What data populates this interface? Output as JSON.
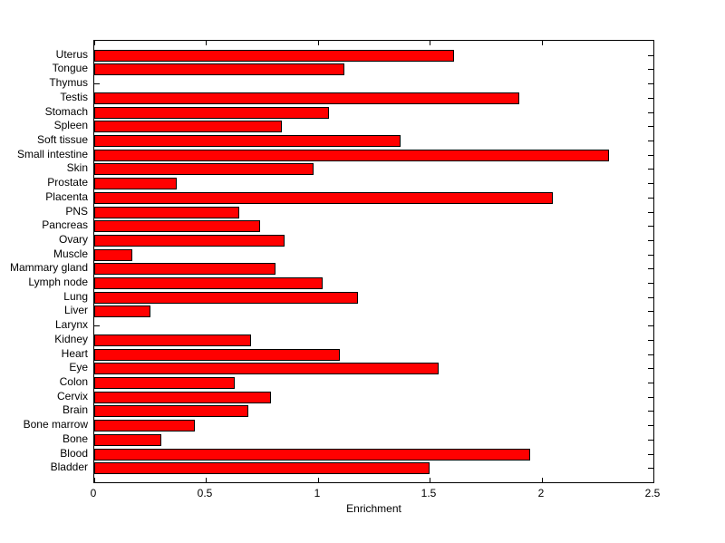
{
  "figure": {
    "background": "#ffffff",
    "axis_color": "#000000",
    "text_color": "#000000"
  },
  "chart_data": {
    "type": "bar",
    "orientation": "horizontal",
    "xlabel": "Enrichment",
    "xlim": [
      0,
      2.5
    ],
    "xticks": [
      0,
      0.5,
      1,
      1.5,
      2,
      2.5
    ],
    "xtick_labels": [
      "0",
      "0.5",
      "1",
      "1.5",
      "2",
      "2.5"
    ],
    "grid": false,
    "bar_color": "#FF0000",
    "bar_edge_color": "#000000",
    "categories_top_to_bottom": [
      "Uterus",
      "Tongue",
      "Thymus",
      "Testis",
      "Stomach",
      "Spleen",
      "Soft tissue",
      "Small intestine",
      "Skin",
      "Prostate",
      "Placenta",
      "PNS",
      "Pancreas",
      "Ovary",
      "Muscle",
      "Mammary gland",
      "Lymph node",
      "Lung",
      "Liver",
      "Larynx",
      "Kidney",
      "Heart",
      "Eye",
      "Colon",
      "Cervix",
      "Brain",
      "Bone marrow",
      "Bone",
      "Blood",
      "Bladder"
    ],
    "values": [
      1.61,
      1.12,
      0,
      1.9,
      1.05,
      0.84,
      1.37,
      2.3,
      0.98,
      0.37,
      2.05,
      0.65,
      0.74,
      0.85,
      0.17,
      0.81,
      1.02,
      1.18,
      0.25,
      0,
      0.7,
      1.1,
      1.54,
      0.63,
      0.79,
      0.69,
      0.45,
      0.3,
      1.95,
      1.5
    ]
  }
}
